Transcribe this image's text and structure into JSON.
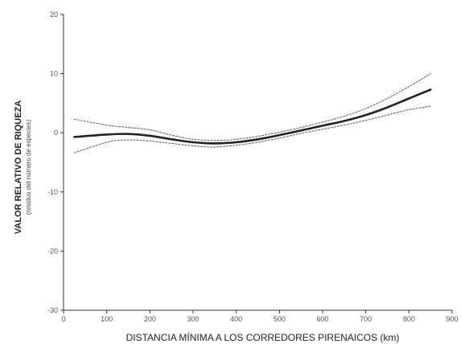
{
  "chart_data": {
    "type": "line",
    "title": "",
    "xlabel": "DISTANCIA MÍNIMA A LOS CORREDORES PIRENAICOS (km)",
    "ylabel": "VALOR RELATIVO DE RIQUEZA",
    "ylabel_sub": "(residuo del número de especies)",
    "xlim": [
      0,
      900
    ],
    "ylim": [
      -30,
      20
    ],
    "xticks": [
      0,
      100,
      200,
      300,
      400,
      500,
      600,
      700,
      800,
      900
    ],
    "yticks": [
      -30,
      -20,
      -10,
      0,
      10,
      20
    ],
    "grid": false,
    "legend": "none",
    "series": [
      {
        "role": "fit",
        "style": "solid",
        "x": [
          25,
          100,
          150,
          200,
          250,
          300,
          350,
          400,
          450,
          500,
          550,
          600,
          650,
          700,
          750,
          800,
          850
        ],
        "y": [
          -0.7,
          -0.3,
          -0.2,
          -0.5,
          -1.1,
          -1.6,
          -1.8,
          -1.6,
          -1.1,
          -0.4,
          0.4,
          1.2,
          2.0,
          3.0,
          4.3,
          5.8,
          7.3
        ]
      },
      {
        "role": "upper-confidence",
        "style": "dotted",
        "x": [
          25,
          100,
          150,
          200,
          250,
          300,
          350,
          400,
          450,
          500,
          550,
          600,
          650,
          700,
          750,
          800,
          850
        ],
        "y": [
          2.3,
          1.3,
          0.9,
          0.5,
          -0.4,
          -1.1,
          -1.3,
          -1.1,
          -0.6,
          0.1,
          0.9,
          1.8,
          2.8,
          4.1,
          5.8,
          7.8,
          10.0
        ]
      },
      {
        "role": "lower-confidence",
        "style": "dotted",
        "x": [
          25,
          100,
          150,
          200,
          250,
          300,
          350,
          400,
          450,
          500,
          550,
          600,
          650,
          700,
          750,
          800,
          850
        ],
        "y": [
          -3.4,
          -1.6,
          -1.2,
          -1.4,
          -1.8,
          -2.2,
          -2.4,
          -2.1,
          -1.6,
          -0.9,
          -0.1,
          0.6,
          1.3,
          2.1,
          3.0,
          3.9,
          4.5
        ]
      }
    ]
  }
}
